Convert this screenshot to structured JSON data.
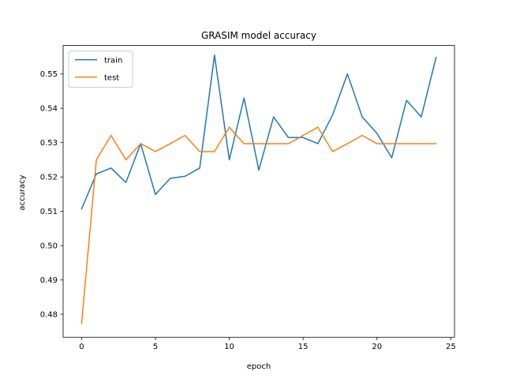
{
  "chart_data": {
    "type": "line",
    "title": "GRASIM model accuracy",
    "xlabel": "epoch",
    "ylabel": "accuracy",
    "xlim": [
      -1.25,
      25.25
    ],
    "ylim": [
      0.4733,
      0.5583
    ],
    "xticks": [
      0,
      5,
      10,
      15,
      20,
      25
    ],
    "yticks": [
      0.48,
      0.49,
      0.5,
      0.51,
      0.52,
      0.53,
      0.54,
      0.55
    ],
    "ytick_labels": [
      "0.48",
      "0.49",
      "0.50",
      "0.51",
      "0.52",
      "0.53",
      "0.54",
      "0.55"
    ],
    "grid": false,
    "legend_position": "upper-left",
    "x": [
      0,
      1,
      2,
      3,
      4,
      5,
      6,
      7,
      8,
      9,
      10,
      11,
      12,
      13,
      14,
      15,
      16,
      17,
      18,
      19,
      20,
      21,
      22,
      23,
      24
    ],
    "series": [
      {
        "name": "train",
        "color": "#1f77b4",
        "values": [
          0.5107,
          0.5209,
          0.5226,
          0.5184,
          0.5297,
          0.5149,
          0.5196,
          0.5202,
          0.5226,
          0.5555,
          0.525,
          0.543,
          0.522,
          0.5375,
          0.5315,
          0.5315,
          0.5297,
          0.5381,
          0.55,
          0.5375,
          0.5327,
          0.5256,
          0.5423,
          0.5375,
          0.5548
        ]
      },
      {
        "name": "test",
        "color": "#ff7f0e",
        "values": [
          0.4773,
          0.525,
          0.5321,
          0.525,
          0.5297,
          0.5274,
          0.5297,
          0.5321,
          0.5274,
          0.5274,
          0.5345,
          0.5297,
          0.5297,
          0.5297,
          0.5297,
          0.5321,
          0.5345,
          0.5274,
          0.5297,
          0.5321,
          0.5297,
          0.5297,
          0.5297,
          0.5297,
          0.5297
        ]
      }
    ]
  }
}
